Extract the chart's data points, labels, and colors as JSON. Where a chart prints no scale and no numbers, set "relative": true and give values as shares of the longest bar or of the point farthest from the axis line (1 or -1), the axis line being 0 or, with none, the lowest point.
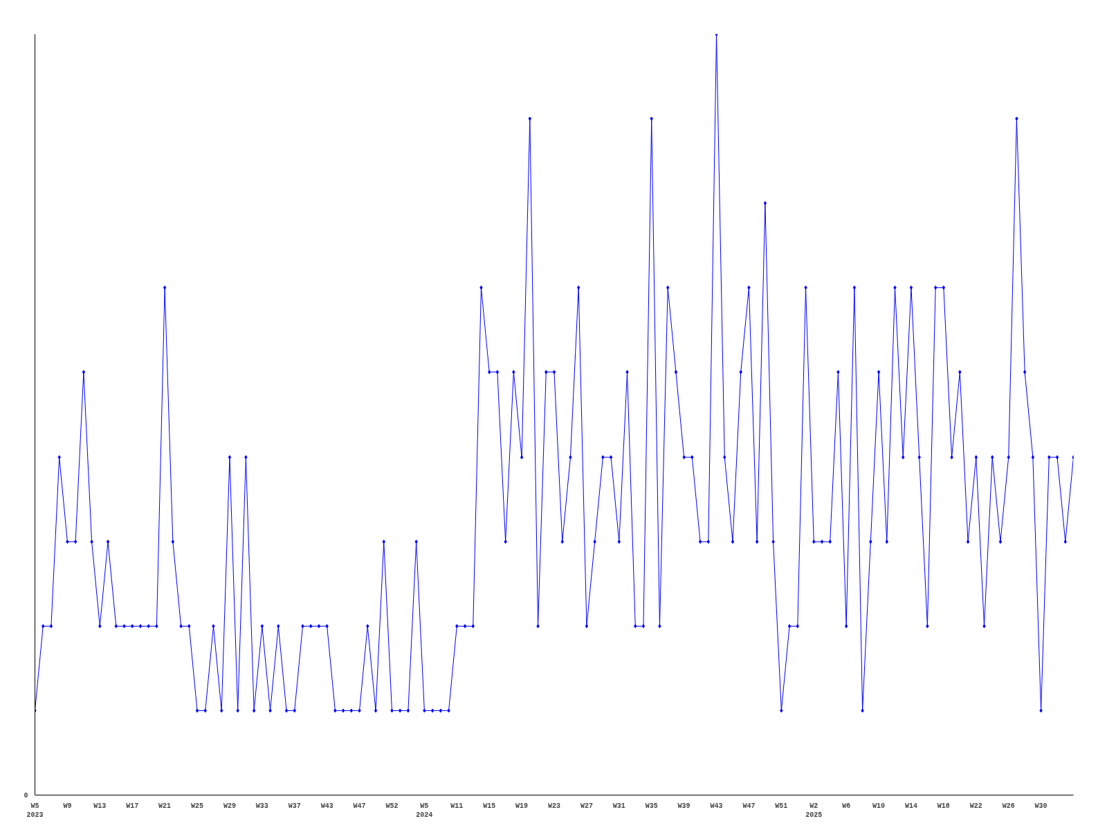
{
  "chart_data": {
    "type": "line",
    "relative": true,
    "marker": "diamond",
    "line_style": "solid",
    "grid": false,
    "annotations": [
      "0"
    ],
    "categories": [
      "W5\n2023",
      null,
      null,
      null,
      "W9",
      null,
      null,
      null,
      "W13",
      null,
      null,
      null,
      "W17",
      null,
      null,
      null,
      "W21",
      null,
      null,
      null,
      "W25",
      null,
      null,
      null,
      "W29",
      null,
      null,
      null,
      "W33",
      null,
      null,
      null,
      "W37",
      null,
      null,
      null,
      "W43",
      null,
      null,
      null,
      "W47",
      null,
      null,
      null,
      "W52",
      null,
      null,
      null,
      "W5\n2024",
      null,
      null,
      null,
      "W11",
      null,
      null,
      null,
      "W15",
      null,
      null,
      null,
      "W19",
      null,
      null,
      null,
      "W23",
      null,
      null,
      null,
      "W27",
      null,
      null,
      null,
      "W31",
      null,
      null,
      null,
      "W35",
      null,
      null,
      null,
      "W39",
      null,
      null,
      null,
      "W43",
      null,
      null,
      null,
      "W47",
      null,
      null,
      null,
      "W51",
      null,
      null,
      null,
      "W2\n2025",
      null,
      null,
      null,
      "W6",
      null,
      null,
      null,
      "W10",
      null,
      null,
      null,
      "W14",
      null,
      null,
      null,
      "W18",
      null,
      null,
      null,
      "W22",
      null,
      null,
      null,
      "W26",
      null,
      null,
      null,
      "W30",
      null,
      null,
      null,
      null
    ],
    "series": [
      {
        "color": "#0000ff",
        "values": [
          0.111,
          0.222,
          0.222,
          0.444,
          0.333,
          0.333,
          0.556,
          0.333,
          0.222,
          0.333,
          0.222,
          0.222,
          0.222,
          0.222,
          0.222,
          0.222,
          0.667,
          0.333,
          0.222,
          0.222,
          0.111,
          0.111,
          0.222,
          0.111,
          0.444,
          0.111,
          0.444,
          0.111,
          0.222,
          0.111,
          0.222,
          0.111,
          0.111,
          0.222,
          0.222,
          0.222,
          0.222,
          0.111,
          0.111,
          0.111,
          0.111,
          0.222,
          0.111,
          0.333,
          0.111,
          0.111,
          0.111,
          0.333,
          0.111,
          0.111,
          0.111,
          0.111,
          0.222,
          0.222,
          0.222,
          0.667,
          0.556,
          0.556,
          0.333,
          0.556,
          0.444,
          0.889,
          0.222,
          0.556,
          0.556,
          0.333,
          0.444,
          0.667,
          0.222,
          0.333,
          0.444,
          0.444,
          0.333,
          0.556,
          0.222,
          0.222,
          0.889,
          0.222,
          0.667,
          0.556,
          0.444,
          0.444,
          0.333,
          0.333,
          1,
          0.444,
          0.333,
          0.556,
          0.667,
          0.333,
          0.778,
          0.333,
          0.111,
          0.222,
          0.222,
          0.667,
          0.333,
          0.333,
          0.333,
          0.556,
          0.222,
          0.667,
          0.111,
          0.333,
          0.556,
          0.333,
          0.667,
          0.444,
          0.667,
          0.444,
          0.222,
          0.667,
          0.667,
          0.444,
          0.556,
          0.333,
          0.444,
          0.222,
          0.444,
          0.333,
          0.444,
          0.889,
          0.556,
          0.444,
          0.111,
          0.444,
          0.444,
          0.333,
          0.444
        ]
      }
    ]
  }
}
